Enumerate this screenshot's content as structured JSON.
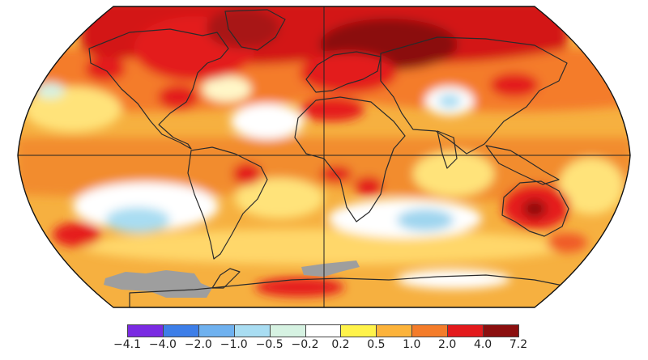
{
  "map": {
    "projection": "robinson",
    "gridlines": [
      "equator",
      "prime-meridian"
    ],
    "ocean_fill_default": "#f6b040",
    "missing_data_color": "#9e9e9e",
    "regions": [
      {
        "name": "arctic-siberia-hotspot",
        "level": "4.0–7.2",
        "color": "#8b0f0f"
      },
      {
        "name": "arctic-greenland-canada",
        "level": "2.0–4.0",
        "color": "#d31515"
      },
      {
        "name": "eastern-europe-russia",
        "level": "2.0–4.0",
        "color": "#d31515"
      },
      {
        "name": "australia-interior",
        "level": "4.0–7.2",
        "color": "#8b0f0f"
      },
      {
        "name": "australia",
        "level": "2.0–4.0",
        "color": "#e51c1c"
      },
      {
        "name": "north-pacific-patch",
        "level": "2.0–4.0",
        "color": "#e51c1c"
      },
      {
        "name": "south-pacific-patch",
        "level": "2.0–4.0",
        "color": "#e51c1c"
      },
      {
        "name": "antarctic-coast-warm",
        "level": "2.0–4.0",
        "color": "#e51c1c"
      },
      {
        "name": "north-atlantic-cool",
        "level": "-0.2–0.2",
        "color": "#ffffff"
      },
      {
        "name": "south-pacific-cool",
        "level": "-1.0–-0.5",
        "color": "#bfe6f2"
      },
      {
        "name": "south-indian-cool",
        "level": "-1.0–-0.5",
        "color": "#bfe6f2"
      },
      {
        "name": "central-asia-cool",
        "level": "-1.0–-0.5",
        "color": "#bfe6f2"
      },
      {
        "name": "antarctica-missing",
        "level": "no data",
        "color": "#9e9e9e"
      }
    ]
  },
  "legend": {
    "bins": [
      {
        "color": "#7a2be2"
      },
      {
        "color": "#3d7ee8"
      },
      {
        "color": "#6fb1ef"
      },
      {
        "color": "#a9ddf2"
      },
      {
        "color": "#d6f2e2"
      },
      {
        "color": "#ffffff"
      },
      {
        "color": "#fff34a"
      },
      {
        "color": "#fcb33b"
      },
      {
        "color": "#f47c2a"
      },
      {
        "color": "#e31a1c"
      },
      {
        "color": "#8b0f0f"
      }
    ],
    "ticks": [
      "−4.1",
      "−4.0",
      "−2.0",
      "−1.0",
      "−0.5",
      "−0.2",
      "0.2",
      "0.5",
      "1.0",
      "2.0",
      "4.0",
      "7.2"
    ]
  }
}
